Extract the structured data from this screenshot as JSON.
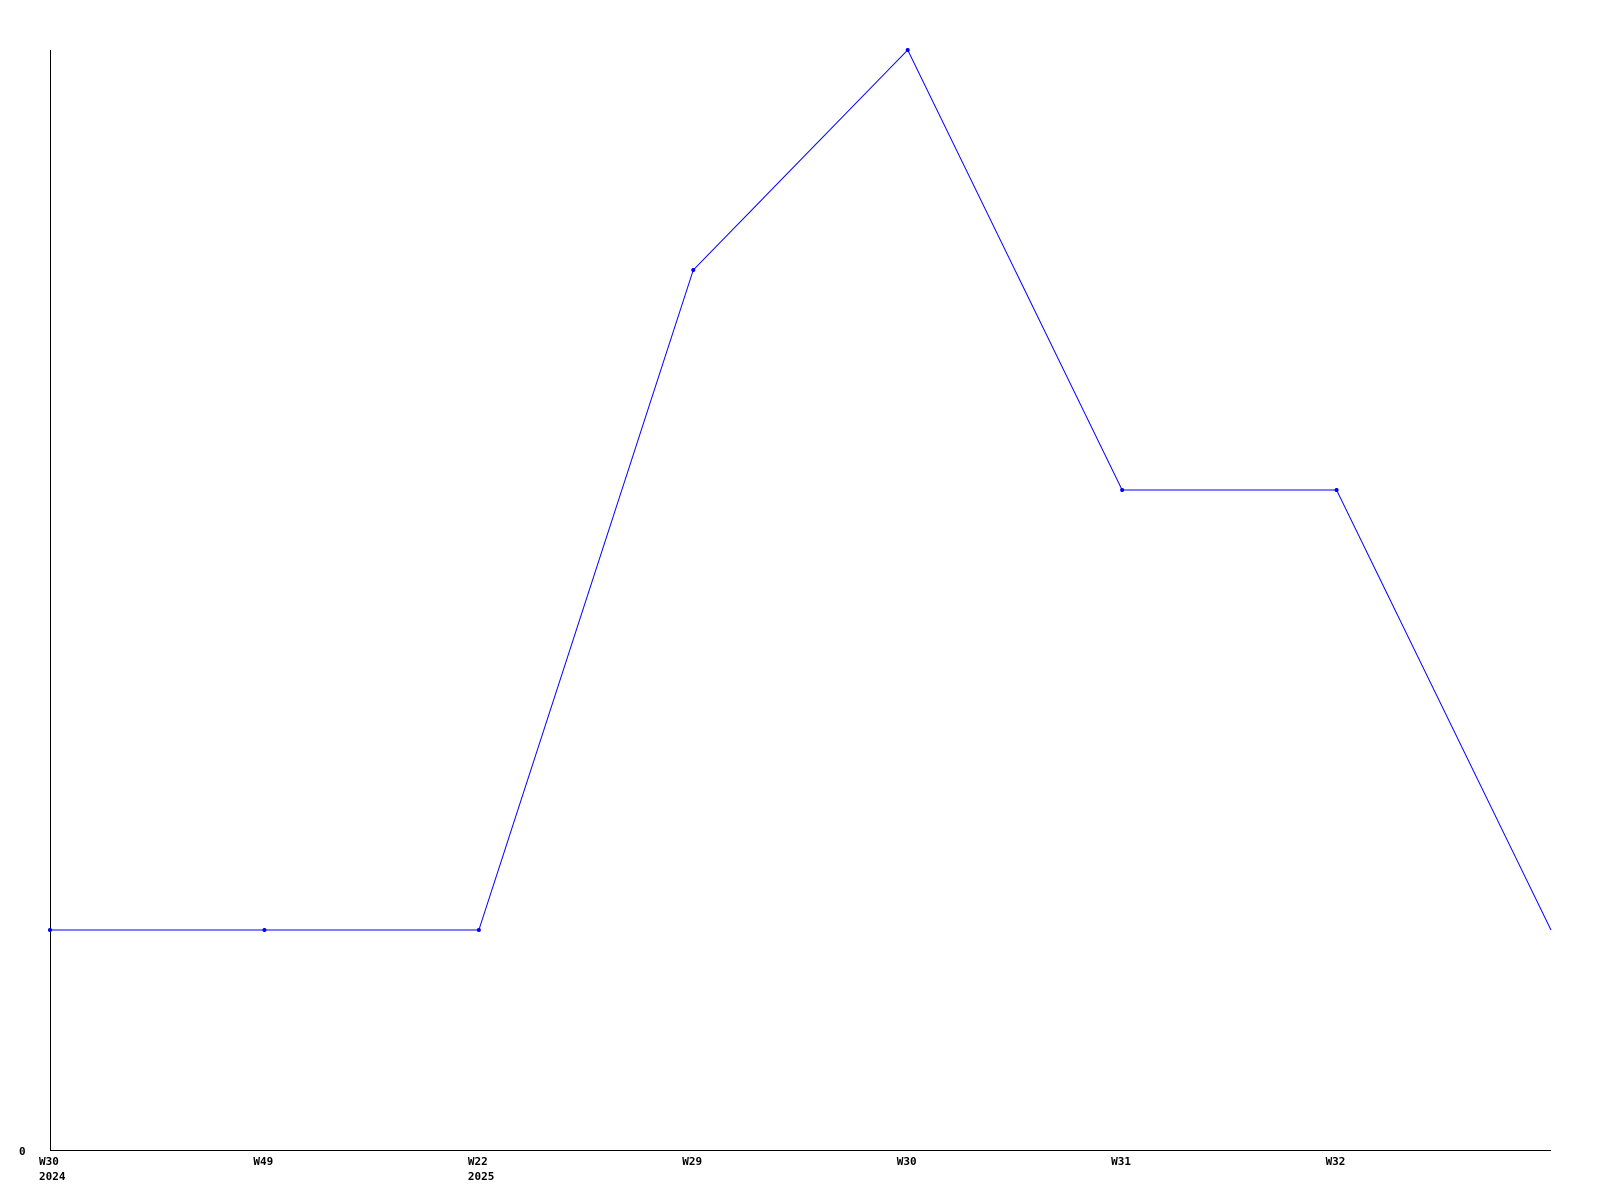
{
  "chart_data": {
    "type": "line",
    "title": "",
    "xlabel": "",
    "ylabel": "",
    "categories": [
      {
        "week": "W30",
        "year": "2024"
      },
      {
        "week": "W49",
        "year": ""
      },
      {
        "week": "W22",
        "year": "2025"
      },
      {
        "week": "W29",
        "year": ""
      },
      {
        "week": "W30",
        "year": ""
      },
      {
        "week": "W31",
        "year": ""
      },
      {
        "week": "W32",
        "year": ""
      },
      {
        "week": "",
        "year": ""
      }
    ],
    "series": [
      {
        "values": [
          1,
          1,
          1,
          4,
          5,
          3,
          3,
          1
        ],
        "markers": [
          true,
          true,
          true,
          true,
          true,
          true,
          true,
          false
        ]
      }
    ],
    "ylim": [
      0,
      5
    ],
    "y_tick_labels": [
      "0"
    ],
    "grid": false,
    "colors": {
      "line": "#0000ff",
      "axis": "#000000"
    }
  }
}
